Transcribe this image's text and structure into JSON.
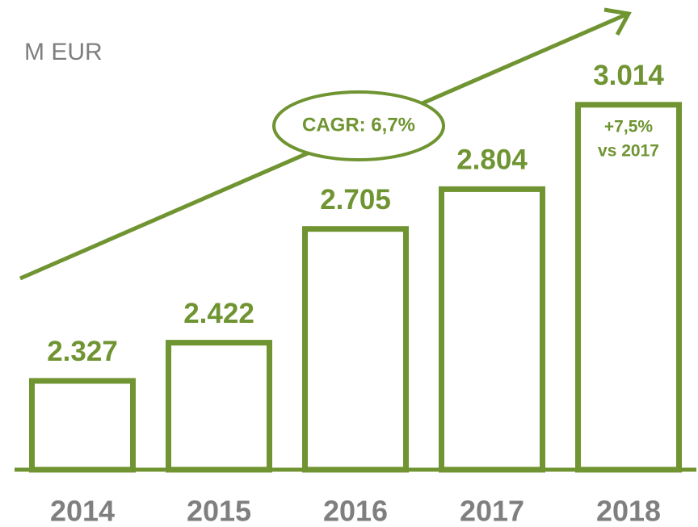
{
  "chart_data": {
    "type": "bar",
    "y_label": "M EUR",
    "categories": [
      "2014",
      "2015",
      "2016",
      "2017",
      "2018"
    ],
    "values": [
      2327,
      2422,
      2705,
      2804,
      3014
    ],
    "value_labels": [
      "2.327",
      "2.422",
      "2.705",
      "2.804",
      "3.014"
    ],
    "color": "#6f9431",
    "ylim": [
      2106,
      3100
    ],
    "annotations": {
      "cagr": "CAGR: 6,7%",
      "growth": [
        "+7,5%",
        "vs 2017"
      ]
    }
  }
}
